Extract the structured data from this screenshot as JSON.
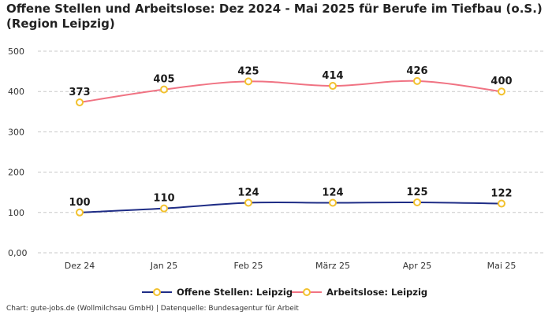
{
  "chart_data": {
    "type": "line",
    "title": "Offene Stellen und Arbeitslose: Dez 2024 - Mai 2025 für Berufe im Tiefbau (o.S.) (Region Leipzig)",
    "categories": [
      "Dez 24",
      "Jan 25",
      "Feb 25",
      "März 25",
      "Apr 25",
      "Mai 25"
    ],
    "y_ticks": [
      "0,00",
      "100",
      "200",
      "300",
      "400",
      "500"
    ],
    "y_tick_values": [
      0,
      100,
      200,
      300,
      400,
      500
    ],
    "ylim": [
      0,
      500
    ],
    "grid": true,
    "legend_position": "bottom",
    "series": [
      {
        "name": "Offene Stellen: Leipzig",
        "values": [
          100,
          110,
          124,
          124,
          125,
          122
        ],
        "color": "#1f2d86"
      },
      {
        "name": "Arbeitslose: Leipzig",
        "values": [
          373,
          405,
          425,
          414,
          426,
          400
        ],
        "color": "#f07383"
      }
    ],
    "marker_color": "#f2c12e"
  },
  "source_text": "Chart: gute-jobs.de (Wollmilchsau GmbH) | Datenquelle: Bundesagentur für Arbeit"
}
